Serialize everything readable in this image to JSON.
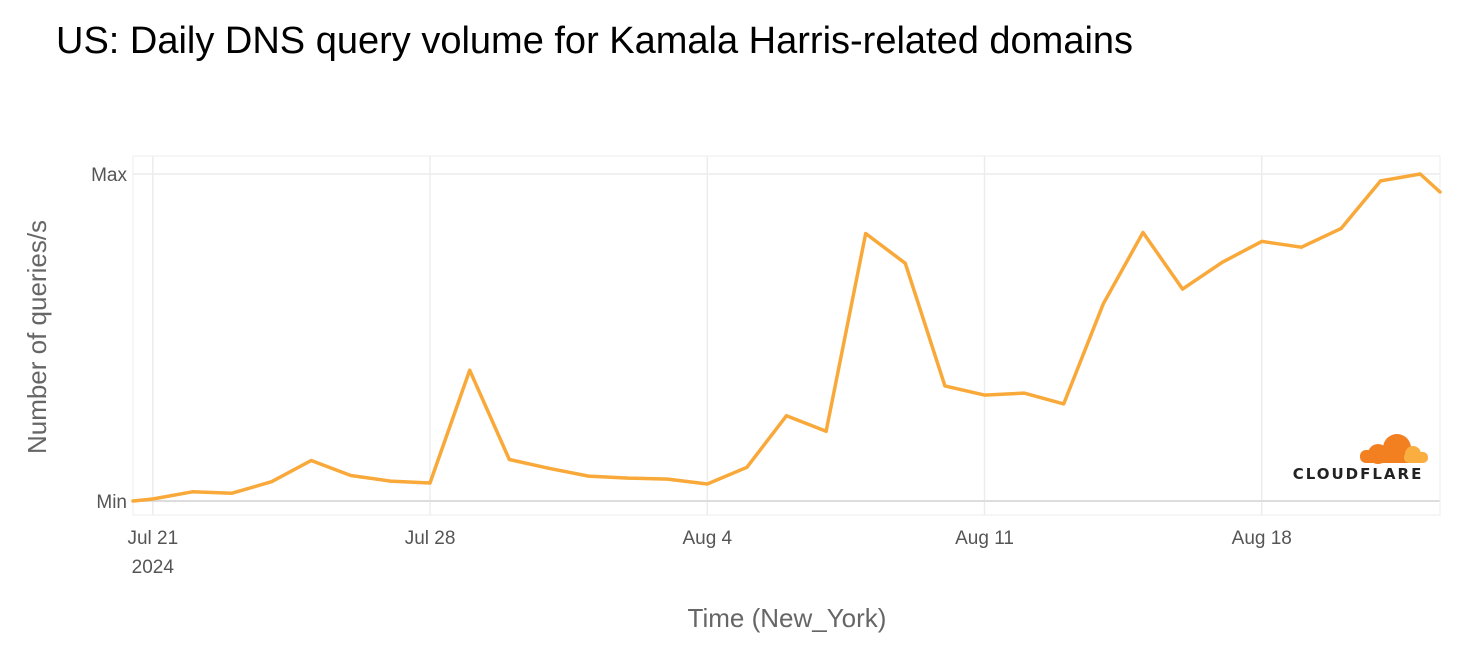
{
  "chart_data": {
    "type": "line",
    "title": "US: Daily DNS query volume for Kamala Harris-related domains",
    "xlabel": "Time (New_York)",
    "ylabel": "Number of queries/s",
    "y_tick_labels": [
      "Min",
      "Max"
    ],
    "ylim": [
      0,
      100
    ],
    "x_tick_labels": [
      {
        "date": "2024-07-21",
        "label": "Jul 21",
        "sublabel": "2024"
      },
      {
        "date": "2024-07-28",
        "label": "Jul 28"
      },
      {
        "date": "2024-08-04",
        "label": "Aug 4"
      },
      {
        "date": "2024-08-11",
        "label": "Aug 11"
      },
      {
        "date": "2024-08-18",
        "label": "Aug 18"
      }
    ],
    "xlim": [
      "2024-07-20T12:00",
      "2024-08-22T12:00"
    ],
    "grid": true,
    "series": [
      {
        "color": "#F9A93A",
        "points": [
          {
            "x": "2024-07-20T12:00",
            "y": 0.0
          },
          {
            "x": "2024-07-21T00:00",
            "y": 0.6
          },
          {
            "x": "2024-07-22T00:00",
            "y": 2.8
          },
          {
            "x": "2024-07-23T00:00",
            "y": 2.4
          },
          {
            "x": "2024-07-24T00:00",
            "y": 5.9
          },
          {
            "x": "2024-07-25T00:00",
            "y": 12.4
          },
          {
            "x": "2024-07-26T00:00",
            "y": 7.8
          },
          {
            "x": "2024-07-27T00:00",
            "y": 6.1
          },
          {
            "x": "2024-07-28T00:00",
            "y": 5.5
          },
          {
            "x": "2024-07-29T00:00",
            "y": 40.0
          },
          {
            "x": "2024-07-30T00:00",
            "y": 12.7
          },
          {
            "x": "2024-07-31T00:00",
            "y": 10.0
          },
          {
            "x": "2024-08-01T00:00",
            "y": 7.6
          },
          {
            "x": "2024-08-02T00:00",
            "y": 7.0
          },
          {
            "x": "2024-08-03T00:00",
            "y": 6.7
          },
          {
            "x": "2024-08-04T00:00",
            "y": 5.2
          },
          {
            "x": "2024-08-05T00:00",
            "y": 10.3
          },
          {
            "x": "2024-08-06T00:00",
            "y": 26.1
          },
          {
            "x": "2024-08-07T00:00",
            "y": 21.3
          },
          {
            "x": "2024-08-08T00:00",
            "y": 81.8
          },
          {
            "x": "2024-08-09T00:00",
            "y": 72.7
          },
          {
            "x": "2024-08-10T00:00",
            "y": 35.2
          },
          {
            "x": "2024-08-11T00:00",
            "y": 32.4
          },
          {
            "x": "2024-08-12T00:00",
            "y": 33.0
          },
          {
            "x": "2024-08-13T00:00",
            "y": 29.7
          },
          {
            "x": "2024-08-14T00:00",
            "y": 60.3
          },
          {
            "x": "2024-08-15T00:00",
            "y": 82.1
          },
          {
            "x": "2024-08-16T00:00",
            "y": 64.8
          },
          {
            "x": "2024-08-17T00:00",
            "y": 73.0
          },
          {
            "x": "2024-08-18T00:00",
            "y": 79.4
          },
          {
            "x": "2024-08-19T00:00",
            "y": 77.6
          },
          {
            "x": "2024-08-20T00:00",
            "y": 83.3
          },
          {
            "x": "2024-08-21T00:00",
            "y": 97.9
          },
          {
            "x": "2024-08-22T00:00",
            "y": 100.0
          },
          {
            "x": "2024-08-22T12:00",
            "y": 94.5
          }
        ]
      }
    ]
  },
  "logo": {
    "text": "CLOUDFLARE",
    "color_dark": "#F38020",
    "color_light": "#FAAE40"
  }
}
